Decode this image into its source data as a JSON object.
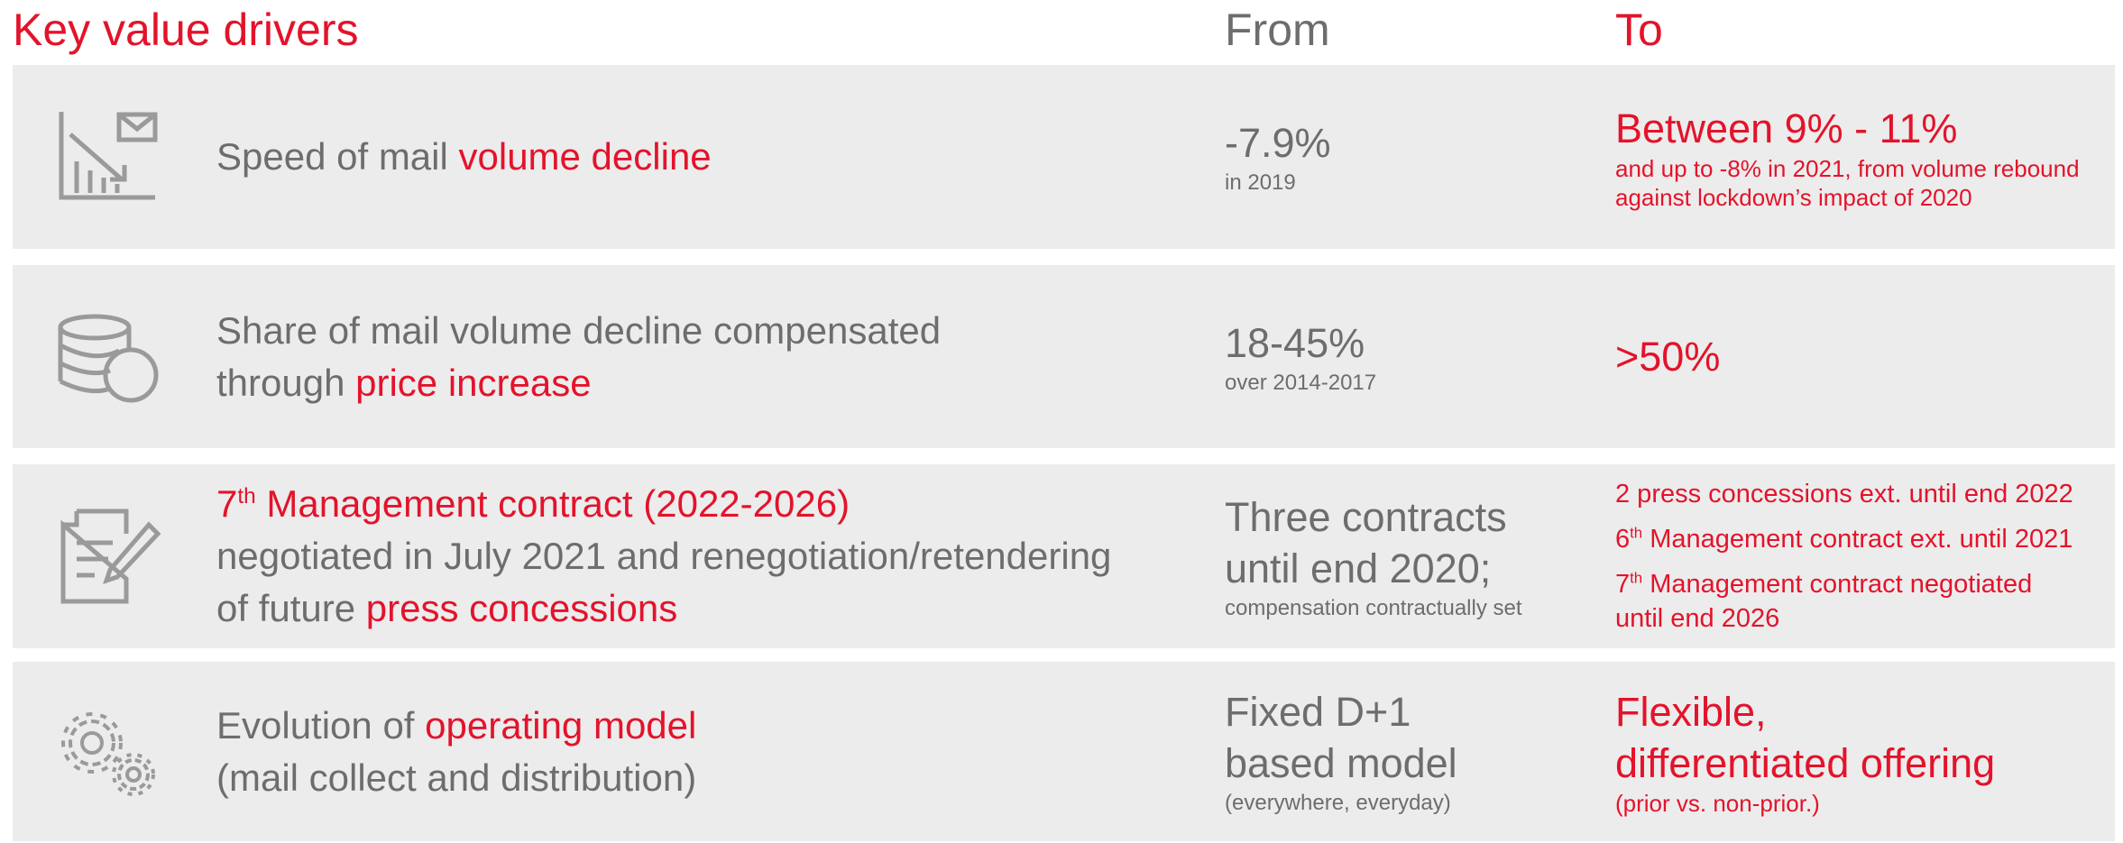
{
  "header": {
    "title": "Key value drivers",
    "from": "From",
    "to": "To"
  },
  "rows": [
    {
      "driver": [
        [
          "Speed of mail ",
          {
            "text": "volume decline",
            "accent": true
          }
        ]
      ],
      "from": {
        "main": [
          "-7.9%"
        ],
        "note": [
          "in 2019"
        ]
      },
      "to": {
        "main": [
          "Between 9% - 11%"
        ],
        "note": [
          "and up to -8% in 2021, from volume rebound",
          "against lockdown’s impact of 2020"
        ]
      }
    },
    {
      "driver": [
        [
          "Share of mail volume decline compensated"
        ],
        [
          "through ",
          {
            "text": "price increase",
            "accent": true
          }
        ]
      ],
      "from": {
        "main": [
          "18-45%"
        ],
        "note": [
          "over 2014-2017"
        ]
      },
      "to": {
        "main": [
          ">50%"
        ]
      }
    },
    {
      "driver": [
        [
          {
            "text": "7",
            "accent": true
          },
          {
            "text": "th",
            "accent": true,
            "sup": true
          },
          {
            "text": " Management contract (2022-2026)",
            "accent": true
          }
        ],
        [
          "negotiated in July 2021 and renegotiation/retendering"
        ],
        [
          "of future ",
          {
            "text": "press concessions",
            "accent": true
          }
        ]
      ],
      "from": {
        "main": [
          "Three contracts",
          "until end 2020;"
        ],
        "note": [
          "compensation contractually set"
        ]
      },
      "to": {
        "items": [
          [
            [
              "2 press concessions ext. until end 2022"
            ]
          ],
          [
            [
              "6",
              {
                "text": "th",
                "sup": true
              },
              " Management contract ext. until 2021"
            ]
          ],
          [
            [
              "7",
              {
                "text": "th",
                "sup": true
              },
              " Management contract negotiated"
            ],
            [
              "until end 2026"
            ]
          ]
        ]
      }
    },
    {
      "driver": [
        [
          "Evolution of ",
          {
            "text": "operating model",
            "accent": true
          }
        ],
        [
          "(mail collect and distribution)"
        ]
      ],
      "from": {
        "main": [
          "Fixed D+1",
          "based model"
        ],
        "note": [
          "(everywhere, everyday)"
        ]
      },
      "to": {
        "main": [
          "Flexible,",
          "differentiated offering"
        ],
        "note": [
          "(prior vs. non-prior.)"
        ]
      }
    }
  ]
}
